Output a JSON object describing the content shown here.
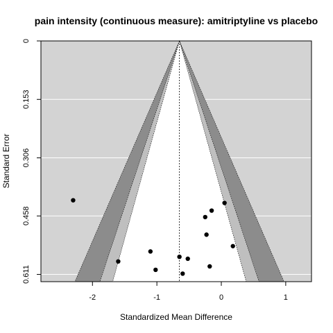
{
  "chart_data": {
    "type": "scatter",
    "subtype": "contour-enhanced funnel plot",
    "title": "pain intensity (continuous measure): amitriptyline vs placebo",
    "xlabel": "Standardized Mean Difference",
    "ylabel": "Standard Error",
    "xlim": [
      -2.8,
      1.4
    ],
    "ylim": [
      0,
      0.63
    ],
    "y_reversed": true,
    "x_ticks": [
      -2,
      -1,
      0,
      1
    ],
    "x_tick_labels": [
      "-2",
      "-1",
      "0",
      "1"
    ],
    "y_ticks": [
      0,
      0.153,
      0.306,
      0.458,
      0.611
    ],
    "y_tick_labels": [
      "0",
      "0.153",
      "0.306",
      "0.458",
      "0.611"
    ],
    "summary_estimate": -0.65,
    "contour_multipliers": [
      1.645,
      1.96,
      2.576
    ],
    "grid": true,
    "colors": {
      "panel_background": "#d3d3d3",
      "gridline": "#ffffff",
      "contour_p90": "#ffffff",
      "contour_p95": "#bfbfbf",
      "contour_p99": "#8c8c8c",
      "points": "#000000"
    },
    "points": [
      {
        "x": -2.3,
        "y": 0.417
      },
      {
        "x": 0.05,
        "y": 0.424
      },
      {
        "x": -0.15,
        "y": 0.444
      },
      {
        "x": -0.25,
        "y": 0.461
      },
      {
        "x": -0.23,
        "y": 0.507
      },
      {
        "x": 0.18,
        "y": 0.537
      },
      {
        "x": -1.1,
        "y": 0.551
      },
      {
        "x": -0.65,
        "y": 0.565
      },
      {
        "x": -0.52,
        "y": 0.57
      },
      {
        "x": -1.6,
        "y": 0.577
      },
      {
        "x": -0.18,
        "y": 0.59
      },
      {
        "x": -1.02,
        "y": 0.599
      },
      {
        "x": -0.6,
        "y": 0.609
      }
    ]
  }
}
